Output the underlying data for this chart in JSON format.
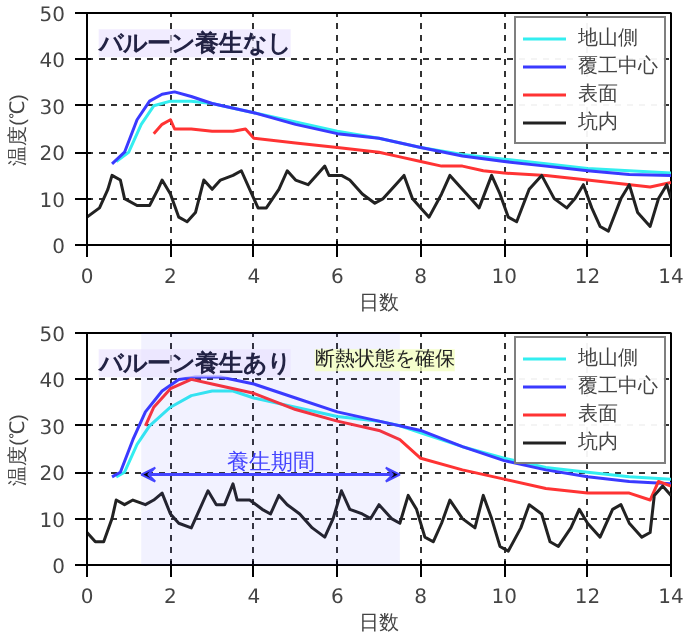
{
  "chart_data": [
    {
      "type": "line",
      "title": "バルーン養生なし",
      "xlabel": "日数",
      "ylabel": "温度(℃)",
      "xlim": [
        0,
        14
      ],
      "ylim": [
        0,
        50
      ],
      "xticks": [
        0,
        2,
        4,
        6,
        8,
        10,
        12,
        14
      ],
      "yticks": [
        0,
        10,
        20,
        30,
        40,
        50
      ],
      "grid": true,
      "legend": "top right",
      "line_style": "solid",
      "series": [
        {
          "name": "地山側",
          "color": "#33eef0",
          "x": [
            0.7,
            1.0,
            1.3,
            1.6,
            2.0,
            2.5,
            3,
            4,
            5,
            6,
            7,
            8,
            9,
            10,
            11,
            12,
            13,
            14
          ],
          "values": [
            18,
            20,
            26,
            30,
            31,
            31,
            30.5,
            28.5,
            26.5,
            24.5,
            23,
            21,
            19.5,
            18.5,
            17.5,
            16.5,
            16,
            15.5
          ]
        },
        {
          "name": "覆工中心",
          "color": "#3a3aff",
          "x": [
            0.6,
            0.9,
            1.2,
            1.5,
            1.8,
            2.1,
            2.5,
            3,
            4,
            5,
            6,
            7,
            8,
            9,
            10,
            11,
            12,
            13,
            14
          ],
          "values": [
            17.5,
            20,
            27,
            31,
            32.5,
            33,
            32,
            30.5,
            28.5,
            26,
            24,
            23,
            21,
            19.2,
            18,
            17,
            16,
            15.2,
            15
          ]
        },
        {
          "name": "表面",
          "color": "#ff3333",
          "x": [
            1.6,
            1.8,
            2.0,
            2.1,
            2.5,
            3,
            3.5,
            3.8,
            4,
            5,
            6,
            7,
            7.5,
            8,
            8.5,
            9,
            9.5,
            10,
            11,
            12,
            13.5,
            14
          ],
          "values": [
            24,
            26,
            27,
            25,
            25,
            24.5,
            24.5,
            25,
            23,
            22,
            21,
            20,
            19,
            18,
            17,
            17,
            16,
            15.5,
            15,
            14,
            12.5,
            13.5
          ]
        },
        {
          "name": "坑内",
          "color": "#222222",
          "x": [
            0,
            0.3,
            0.5,
            0.6,
            0.8,
            0.9,
            1.2,
            1.5,
            1.7,
            1.8,
            2.0,
            2.2,
            2.4,
            2.6,
            2.8,
            3.0,
            3.2,
            3.5,
            3.7,
            3.9,
            4.1,
            4.3,
            4.6,
            4.8,
            5.0,
            5.3,
            5.6,
            5.7,
            5.8,
            6.1,
            6.3,
            6.6,
            6.9,
            7.1,
            7.4,
            7.6,
            7.8,
            8.0,
            8.2,
            8.5,
            8.7,
            8.9,
            9.2,
            9.4,
            9.7,
            9.9,
            10.1,
            10.3,
            10.6,
            10.9,
            11.2,
            11.5,
            11.7,
            11.9,
            12.1,
            12.3,
            12.5,
            12.8,
            13.0,
            13.2,
            13.5,
            13.7,
            13.9,
            14
          ],
          "values": [
            6,
            8,
            12,
            15,
            14,
            10,
            8.5,
            8.5,
            12,
            14,
            11,
            6,
            5,
            7,
            14,
            12,
            14,
            15,
            16,
            12,
            8,
            8,
            12,
            16,
            14,
            13,
            16,
            17,
            15,
            15,
            14,
            11,
            9,
            10,
            13,
            15,
            10,
            8,
            6,
            11,
            15,
            13,
            10,
            8,
            15,
            11,
            6,
            5,
            12,
            15,
            10,
            8,
            10,
            13,
            8,
            4,
            3,
            10,
            13,
            7,
            4,
            10,
            13,
            10
          ]
        }
      ]
    },
    {
      "type": "line",
      "title": "バルーン養生あり",
      "xlabel": "日数",
      "ylabel": "温度(℃)",
      "xlim": [
        0,
        14
      ],
      "ylim": [
        0,
        50
      ],
      "xticks": [
        0,
        2,
        4,
        6,
        8,
        10,
        12,
        14
      ],
      "yticks": [
        0,
        10,
        20,
        30,
        40,
        50
      ],
      "grid": true,
      "legend": "top right",
      "line_style": "solid",
      "annotations": [
        "断熱状態を確保"
      ],
      "bands": [
        {
          "axis": "x",
          "from": 1.3,
          "to": 7.5,
          "label": "養生期間",
          "color": "#4444ff"
        }
      ],
      "series": [
        {
          "name": "地山側",
          "color": "#33eef0",
          "x": [
            0.7,
            0.9,
            1.2,
            1.5,
            2,
            2.5,
            3,
            3.5,
            4,
            5,
            6,
            7,
            7.5,
            8,
            9,
            10,
            11,
            12,
            13,
            14
          ],
          "values": [
            19,
            20,
            26,
            30,
            34,
            36.5,
            37.5,
            37.5,
            36,
            34,
            32,
            31,
            30,
            28.5,
            25.5,
            23,
            21,
            20,
            19,
            18.5
          ]
        },
        {
          "name": "覆工中心",
          "color": "#3a3aff",
          "x": [
            0.6,
            0.8,
            1.1,
            1.4,
            1.8,
            2.2,
            2.6,
            3.2,
            4,
            5,
            6,
            7,
            8,
            9,
            10,
            11,
            12,
            13,
            14
          ],
          "values": [
            19,
            20,
            27,
            33,
            37.5,
            40,
            40.5,
            40.5,
            39,
            36,
            33,
            31,
            29,
            25.5,
            22.5,
            20.5,
            19,
            18,
            17.5
          ]
        },
        {
          "name": "表面",
          "color": "#ff3333",
          "x": [
            1.4,
            1.6,
            2.0,
            2.5,
            3,
            4,
            5,
            6,
            7,
            7.5,
            8,
            9,
            10,
            11,
            12,
            13,
            13.5,
            13.7,
            14
          ],
          "values": [
            30,
            34,
            38,
            40,
            39,
            37,
            33.5,
            31,
            29,
            27,
            23,
            20.5,
            18.5,
            16.5,
            15.5,
            15.5,
            14,
            18,
            17
          ]
        },
        {
          "name": "坑内",
          "color": "#222222",
          "x": [
            0,
            0.2,
            0.4,
            0.6,
            0.7,
            0.9,
            1.1,
            1.4,
            1.6,
            1.8,
            2.0,
            2.2,
            2.5,
            2.7,
            2.9,
            3.1,
            3.3,
            3.5,
            3.6,
            3.9,
            4.2,
            4.4,
            4.6,
            4.8,
            5.1,
            5.4,
            5.7,
            5.9,
            6.1,
            6.3,
            6.6,
            6.8,
            7.0,
            7.3,
            7.5,
            7.7,
            7.9,
            8.1,
            8.3,
            8.5,
            8.7,
            9.0,
            9.3,
            9.5,
            9.7,
            9.9,
            10.1,
            10.4,
            10.6,
            10.9,
            11.1,
            11.3,
            11.6,
            11.8,
            12.0,
            12.3,
            12.6,
            12.8,
            13.0,
            13.3,
            13.5,
            13.6,
            13.8,
            14
          ],
          "values": [
            7,
            5,
            5,
            10,
            14,
            13,
            14,
            13,
            14,
            15.5,
            11,
            9,
            8,
            12,
            16,
            13,
            13,
            17.5,
            14,
            14,
            12,
            11,
            15,
            13,
            11,
            8,
            6,
            10,
            16,
            12,
            11,
            10,
            13,
            10,
            9,
            15,
            12,
            6,
            5,
            9,
            14,
            10,
            8,
            15,
            10,
            4,
            3,
            8,
            13,
            11,
            5,
            4,
            8,
            12,
            9,
            6,
            12,
            13,
            9,
            6,
            7,
            15,
            17,
            15
          ]
        }
      ]
    }
  ]
}
